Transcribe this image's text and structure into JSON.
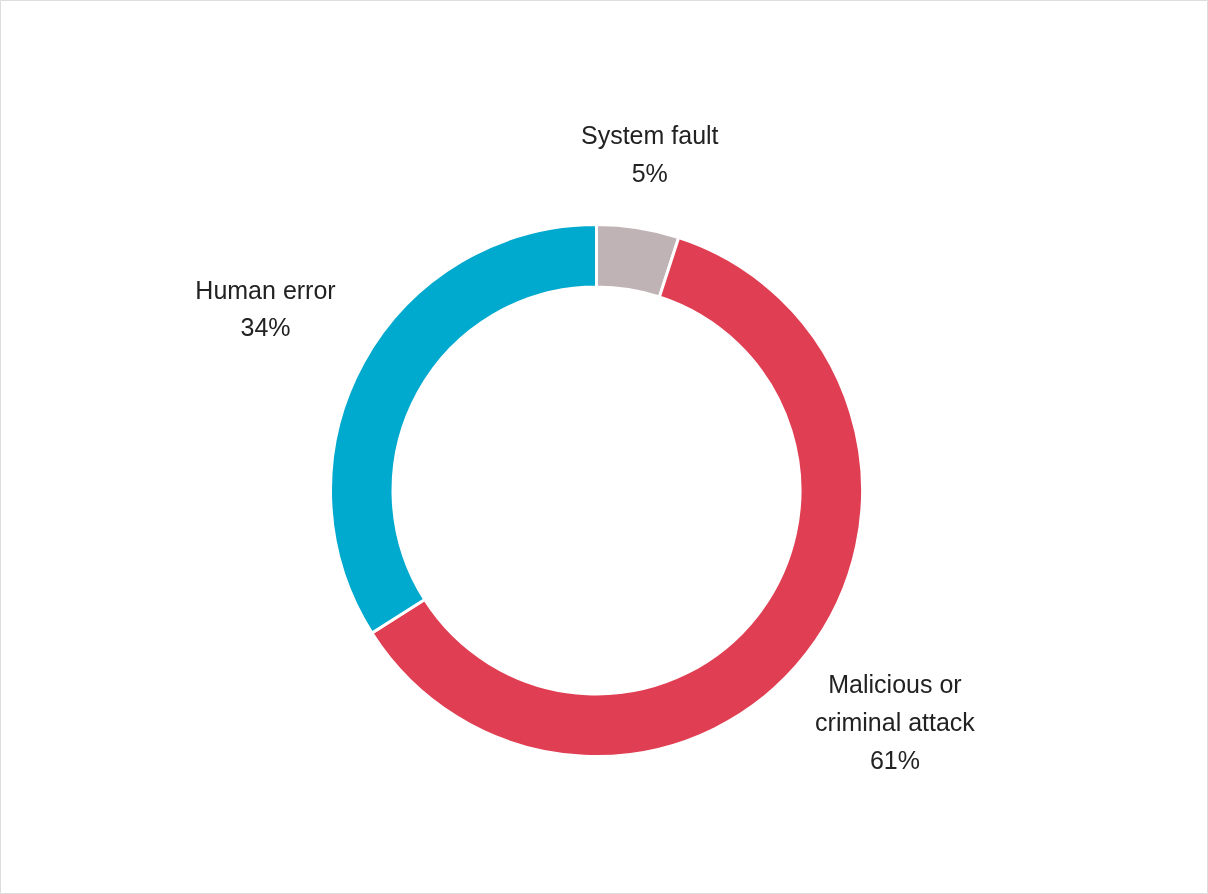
{
  "chart_data": {
    "type": "donut",
    "categories": [
      "System fault",
      "Malicious or criminal attack",
      "Human error"
    ],
    "values": [
      5,
      61,
      34
    ],
    "colors": [
      "#c0b3b5",
      "#e03e52",
      "#00a9ce"
    ],
    "value_labels": [
      "5%",
      "61%",
      "34%"
    ]
  }
}
